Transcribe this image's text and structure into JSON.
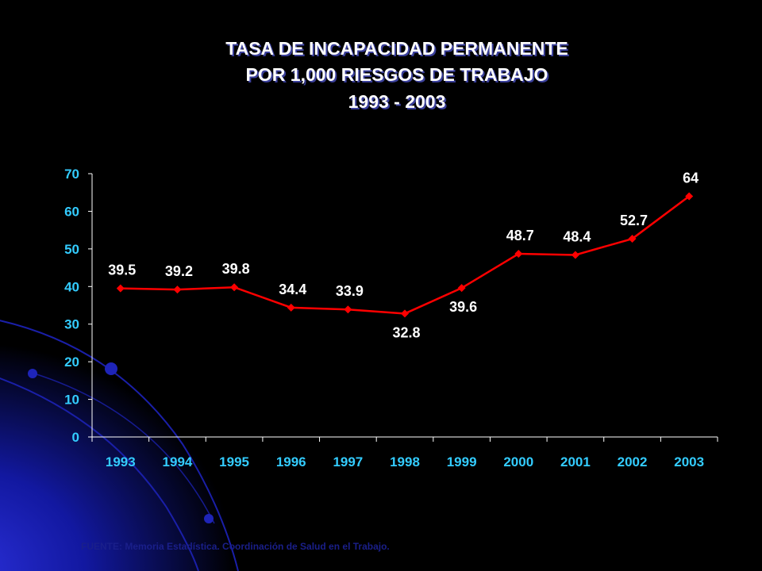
{
  "slide": {
    "title_lines": [
      "TASA DE INCAPACIDAD PERMANENTE",
      "POR 1,000 RIESGOS DE TRABAJO",
      "1993 - 2003"
    ],
    "source": "FUENTE: Memoria Estadística. Coordinación de Salud en el Trabajo.",
    "colors": {
      "background": "#000000",
      "title": "#ffffff",
      "axis_labels": "#33ccff",
      "series": "#ff0000",
      "data_labels": "#ffffff",
      "decoration": "#1a1fa8"
    }
  },
  "chart_data": {
    "type": "line",
    "categories": [
      "1993",
      "1994",
      "1995",
      "1996",
      "1997",
      "1998",
      "1999",
      "2000",
      "2001",
      "2002",
      "2003"
    ],
    "series": [
      {
        "values": [
          39.5,
          39.2,
          39.8,
          34.4,
          33.9,
          32.8,
          39.6,
          48.7,
          48.4,
          52.7,
          64
        ]
      }
    ],
    "data_labels": [
      "39.5",
      "39.2",
      "39.8",
      "34.4",
      "33.9",
      "32.8",
      "39.6",
      "48.7",
      "48.4",
      "52.7",
      "64"
    ],
    "ylim": [
      0,
      70
    ],
    "yticks": [
      0,
      10,
      20,
      30,
      40,
      50,
      60,
      70
    ],
    "grid": false,
    "legend": "none",
    "marker": "diamond"
  }
}
